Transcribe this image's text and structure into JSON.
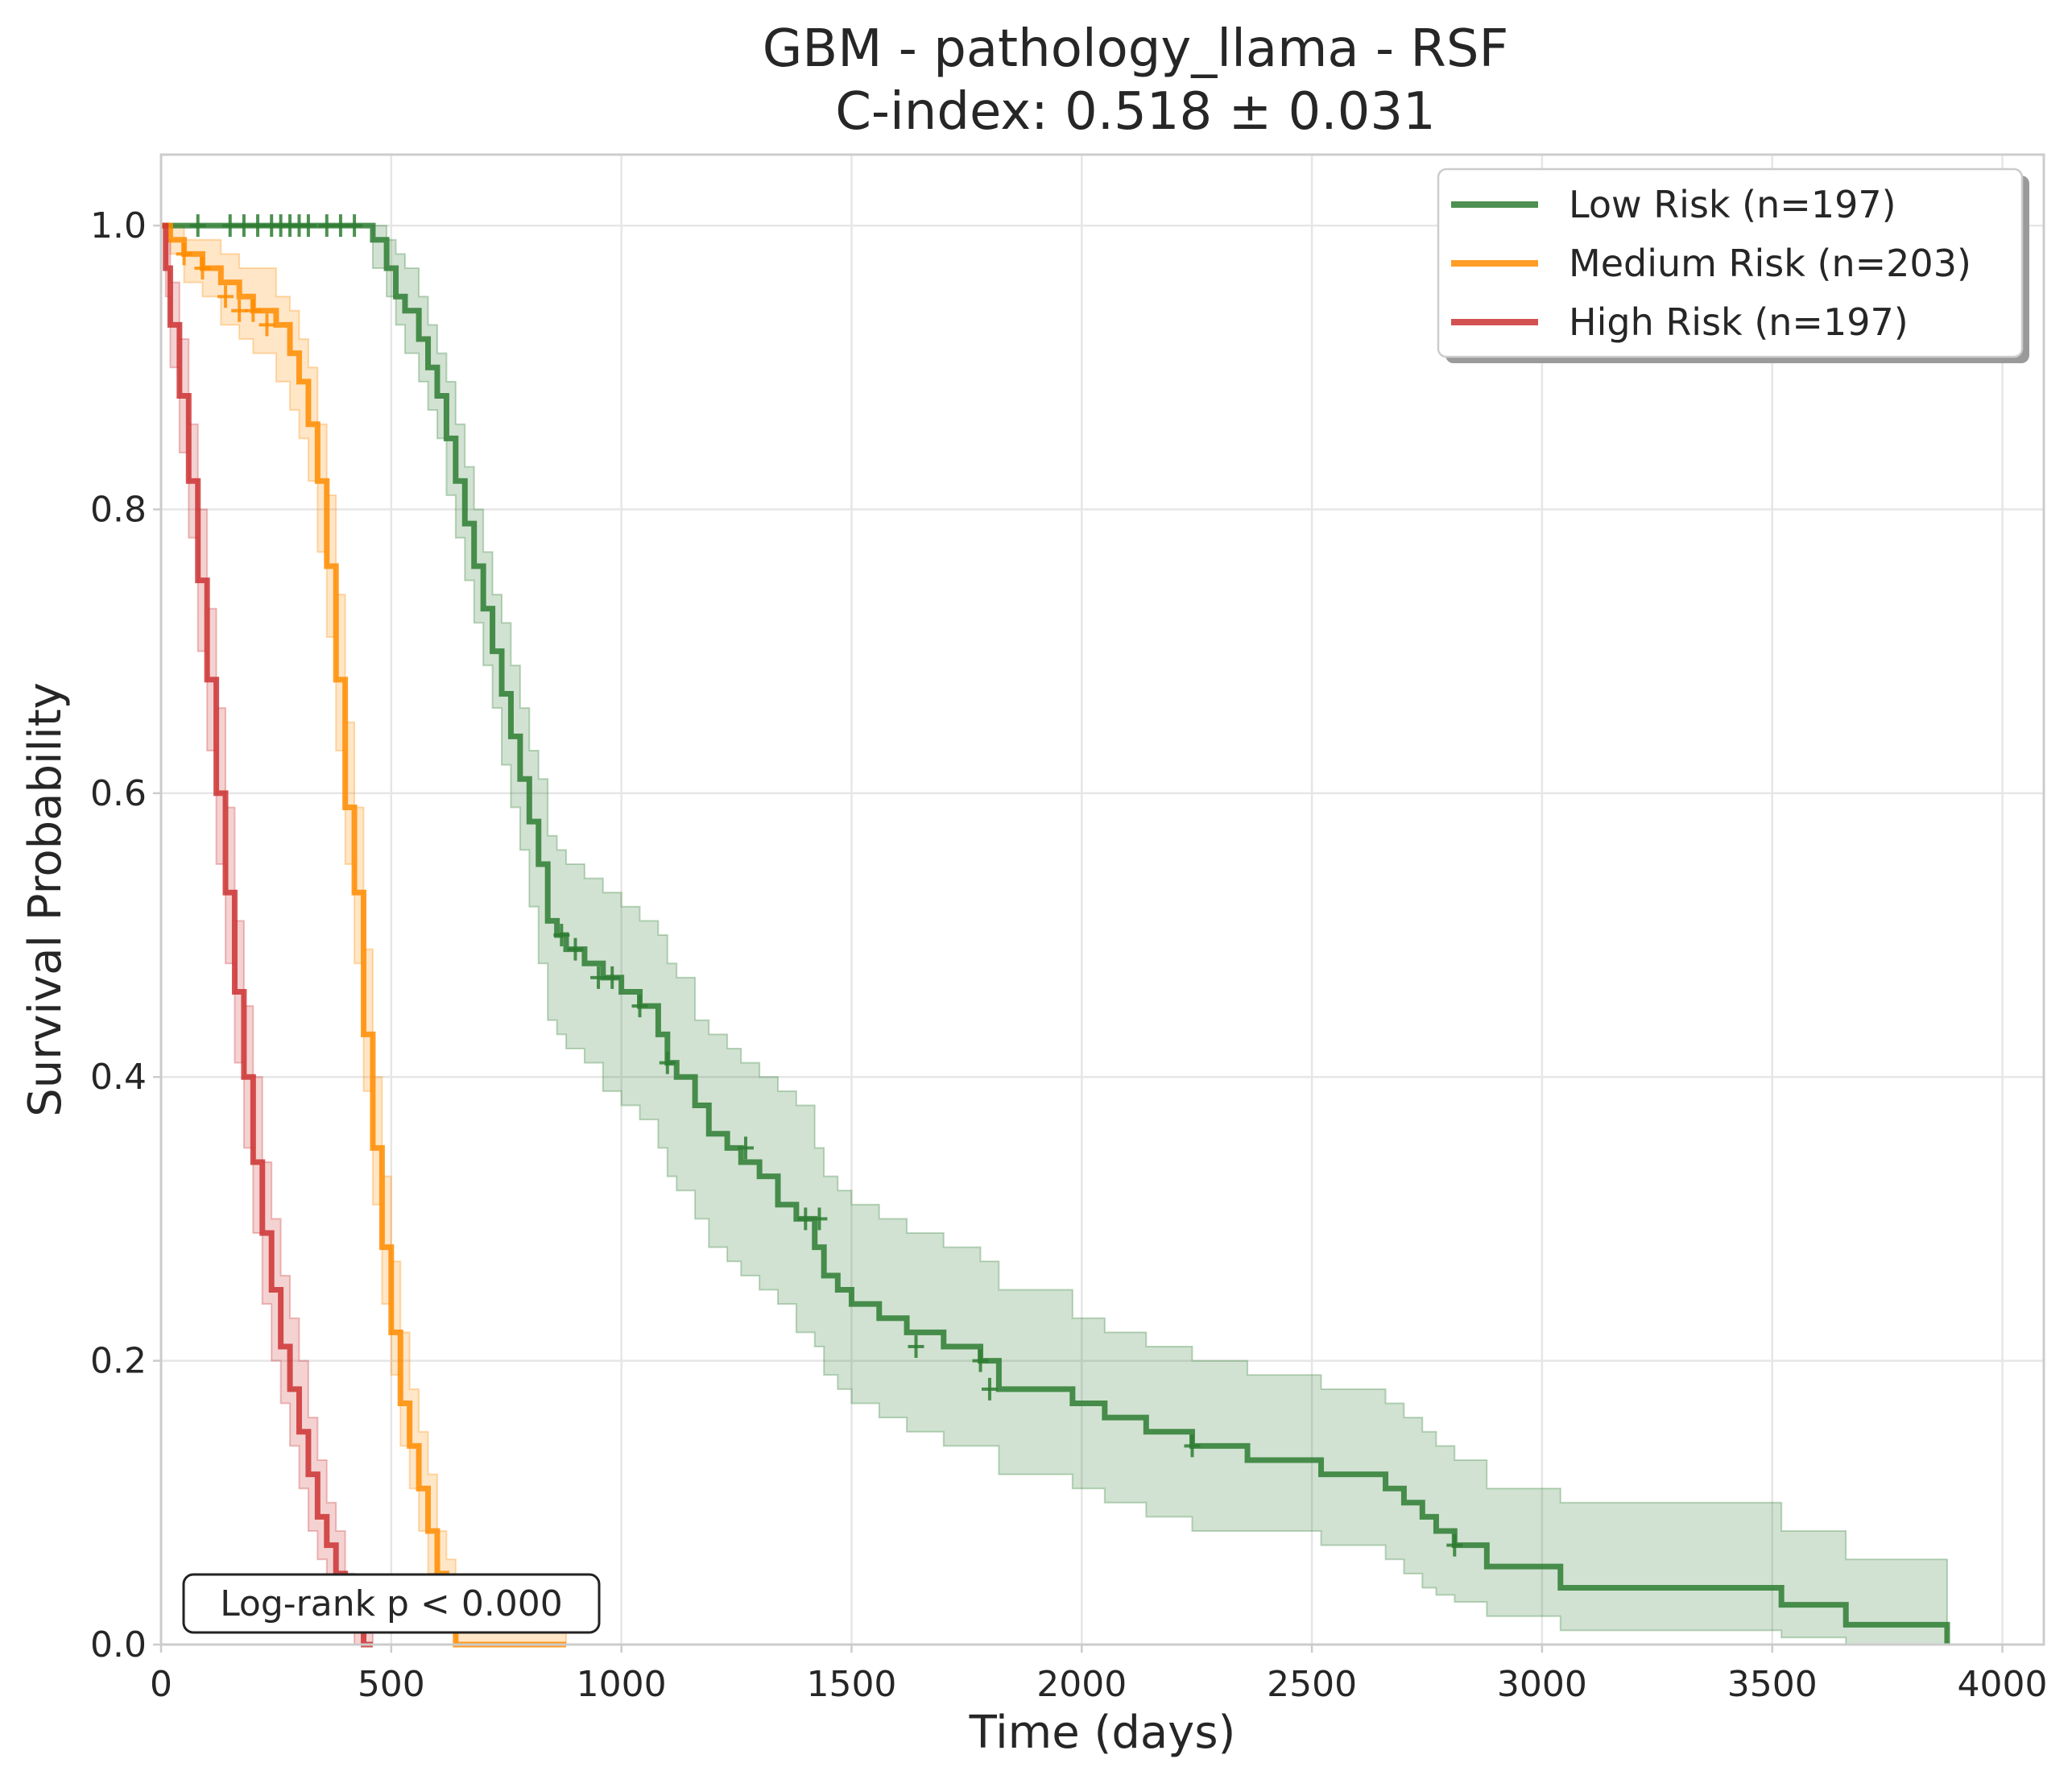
{
  "chart_data": {
    "type": "line",
    "subtype": "kaplan-meier step plot with confidence bands and censor marks",
    "title": "GBM - pathology_llama - RSF",
    "subtitle": "C-index: 0.518 ± 0.031",
    "xlabel": "Time (days)",
    "ylabel": "Survival Probability",
    "xlim": [
      0,
      4090
    ],
    "ylim": [
      0,
      1.05
    ],
    "xticks": [
      0,
      500,
      1000,
      1500,
      2000,
      2500,
      3000,
      3500,
      4000
    ],
    "yticks": [
      0.0,
      0.2,
      0.4,
      0.6,
      0.8,
      1.0
    ],
    "xtick_labels": [
      "0",
      "500",
      "1000",
      "1500",
      "2000",
      "2500",
      "3000",
      "3500",
      "4000"
    ],
    "ytick_labels": [
      "0.0",
      "0.2",
      "0.4",
      "0.6",
      "0.8",
      "1.0"
    ],
    "grid": true,
    "legend_position": "top-right",
    "annotation": "Log-rank p < 0.000",
    "series": [
      {
        "name": "Low Risk (n=197)",
        "color": "#2e7d32",
        "x": [
          0,
          440,
          460,
          490,
          510,
          530,
          560,
          580,
          600,
          620,
          640,
          660,
          680,
          700,
          720,
          740,
          760,
          780,
          800,
          820,
          840,
          860,
          880,
          920,
          960,
          1000,
          1040,
          1080,
          1100,
          1120,
          1160,
          1190,
          1230,
          1260,
          1300,
          1340,
          1380,
          1420,
          1440,
          1470,
          1500,
          1560,
          1620,
          1700,
          1780,
          1820,
          1980,
          2050,
          2140,
          2240,
          2360,
          2520,
          2660,
          2700,
          2740,
          2770,
          2810,
          2880,
          3040,
          3250,
          3520,
          3660,
          3880
        ],
        "y": [
          1.0,
          1.0,
          0.99,
          0.97,
          0.95,
          0.94,
          0.92,
          0.9,
          0.88,
          0.85,
          0.82,
          0.79,
          0.76,
          0.73,
          0.7,
          0.67,
          0.64,
          0.61,
          0.58,
          0.55,
          0.51,
          0.5,
          0.49,
          0.48,
          0.47,
          0.46,
          0.45,
          0.43,
          0.41,
          0.4,
          0.38,
          0.36,
          0.35,
          0.34,
          0.33,
          0.31,
          0.3,
          0.28,
          0.26,
          0.25,
          0.24,
          0.23,
          0.22,
          0.21,
          0.2,
          0.18,
          0.17,
          0.16,
          0.15,
          0.14,
          0.13,
          0.12,
          0.11,
          0.1,
          0.09,
          0.08,
          0.07,
          0.055,
          0.04,
          0.04,
          0.028,
          0.014,
          0.0
        ],
        "ci_lower": [
          1.0,
          1.0,
          0.97,
          0.95,
          0.93,
          0.91,
          0.89,
          0.87,
          0.85,
          0.81,
          0.78,
          0.75,
          0.72,
          0.69,
          0.66,
          0.62,
          0.59,
          0.56,
          0.52,
          0.48,
          0.44,
          0.43,
          0.42,
          0.41,
          0.39,
          0.38,
          0.37,
          0.35,
          0.33,
          0.32,
          0.3,
          0.28,
          0.27,
          0.26,
          0.25,
          0.24,
          0.22,
          0.21,
          0.19,
          0.18,
          0.17,
          0.16,
          0.15,
          0.14,
          0.14,
          0.12,
          0.11,
          0.1,
          0.09,
          0.08,
          0.08,
          0.07,
          0.06,
          0.05,
          0.04,
          0.035,
          0.03,
          0.02,
          0.01,
          0.01,
          0.005,
          0.0,
          0.0
        ],
        "ci_upper": [
          1.0,
          1.0,
          1.0,
          0.99,
          0.98,
          0.97,
          0.95,
          0.93,
          0.91,
          0.89,
          0.86,
          0.83,
          0.8,
          0.77,
          0.74,
          0.72,
          0.69,
          0.66,
          0.63,
          0.61,
          0.57,
          0.56,
          0.55,
          0.54,
          0.53,
          0.52,
          0.51,
          0.5,
          0.48,
          0.47,
          0.44,
          0.43,
          0.42,
          0.41,
          0.4,
          0.39,
          0.38,
          0.35,
          0.33,
          0.32,
          0.31,
          0.3,
          0.29,
          0.28,
          0.27,
          0.25,
          0.23,
          0.22,
          0.21,
          0.2,
          0.19,
          0.18,
          0.17,
          0.16,
          0.15,
          0.14,
          0.13,
          0.11,
          0.1,
          0.1,
          0.08,
          0.06,
          0.06
        ],
        "censor_x": [
          80,
          150,
          180,
          210,
          240,
          260,
          280,
          300,
          320,
          360,
          390,
          420,
          870,
          900,
          950,
          980,
          1040,
          1100,
          1270,
          1400,
          1430,
          1640,
          1780,
          1800,
          2240,
          2810
        ],
        "censor_y": [
          1.0,
          1.0,
          1.0,
          1.0,
          1.0,
          1.0,
          1.0,
          1.0,
          1.0,
          1.0,
          1.0,
          1.0,
          0.5,
          0.49,
          0.47,
          0.47,
          0.45,
          0.41,
          0.35,
          0.3,
          0.3,
          0.21,
          0.2,
          0.18,
          0.14,
          0.07
        ]
      },
      {
        "name": "Medium Risk (n=203)",
        "color": "#ff8c00",
        "x": [
          0,
          20,
          50,
          90,
          130,
          170,
          200,
          250,
          280,
          300,
          320,
          340,
          360,
          380,
          400,
          420,
          440,
          460,
          480,
          500,
          520,
          540,
          560,
          580,
          600,
          620,
          640,
          880
        ],
        "y": [
          1.0,
          0.99,
          0.98,
          0.97,
          0.96,
          0.95,
          0.94,
          0.93,
          0.91,
          0.89,
          0.86,
          0.82,
          0.76,
          0.68,
          0.59,
          0.53,
          0.43,
          0.35,
          0.28,
          0.22,
          0.17,
          0.14,
          0.11,
          0.08,
          0.05,
          0.03,
          0.0,
          0.0
        ],
        "ci_lower": [
          1.0,
          0.98,
          0.96,
          0.95,
          0.93,
          0.92,
          0.91,
          0.89,
          0.87,
          0.85,
          0.82,
          0.77,
          0.71,
          0.63,
          0.55,
          0.48,
          0.39,
          0.31,
          0.24,
          0.19,
          0.14,
          0.11,
          0.08,
          0.05,
          0.03,
          0.01,
          0.0,
          0.0
        ],
        "ci_upper": [
          1.0,
          1.0,
          0.99,
          0.99,
          0.98,
          0.97,
          0.97,
          0.95,
          0.94,
          0.92,
          0.9,
          0.86,
          0.81,
          0.74,
          0.65,
          0.59,
          0.49,
          0.4,
          0.33,
          0.27,
          0.22,
          0.18,
          0.15,
          0.12,
          0.08,
          0.06,
          0.02,
          0.0
        ],
        "censor_x": [
          50,
          90,
          140,
          170,
          200,
          230
        ],
        "censor_y": [
          0.98,
          0.97,
          0.95,
          0.94,
          0.94,
          0.93
        ]
      },
      {
        "name": "High Risk (n=197)",
        "color": "#cc3333",
        "x": [
          0,
          10,
          20,
          40,
          60,
          80,
          100,
          120,
          140,
          160,
          180,
          200,
          220,
          240,
          260,
          280,
          300,
          320,
          340,
          360,
          380,
          400,
          420,
          440,
          460
        ],
        "y": [
          1.0,
          0.97,
          0.93,
          0.88,
          0.82,
          0.75,
          0.68,
          0.6,
          0.53,
          0.46,
          0.4,
          0.34,
          0.29,
          0.25,
          0.21,
          0.18,
          0.15,
          0.12,
          0.09,
          0.07,
          0.05,
          0.03,
          0.01,
          0.0,
          0.0
        ],
        "ci_lower": [
          1.0,
          0.95,
          0.9,
          0.84,
          0.78,
          0.7,
          0.63,
          0.55,
          0.48,
          0.41,
          0.35,
          0.29,
          0.24,
          0.2,
          0.17,
          0.14,
          0.11,
          0.08,
          0.06,
          0.04,
          0.02,
          0.01,
          0.0,
          0.0,
          0.0
        ],
        "ci_upper": [
          1.0,
          0.99,
          0.96,
          0.92,
          0.86,
          0.8,
          0.73,
          0.66,
          0.59,
          0.51,
          0.45,
          0.4,
          0.34,
          0.3,
          0.26,
          0.23,
          0.2,
          0.16,
          0.13,
          0.1,
          0.08,
          0.05,
          0.03,
          0.01,
          0.0
        ],
        "censor_x": [],
        "censor_y": []
      }
    ]
  }
}
